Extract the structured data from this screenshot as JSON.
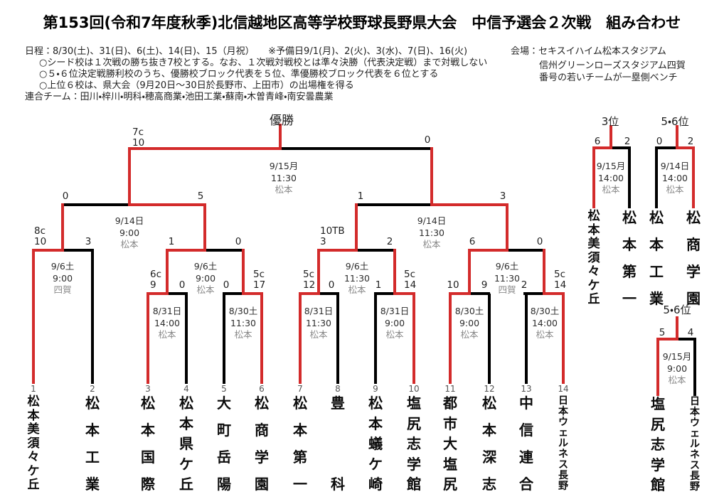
{
  "title": "第153回(令和7年度秋季)北信越地区高等学校野球長野県大会　中信予選会２次戦　組み合わせ",
  "header": {
    "schedule": "日程：8/30(土)、31(日)、6(土)、14(日)、15（月祝）　　※予備日9/1(月)、2(火)、3(水)、7(日)、16(火)",
    "notes": [
      "○シード校は１次戦の勝ち抜き7校とする。なお、１次戦対戦校とは準々決勝（代表決定戦）まで対戦しない",
      "○５・６位決定戦勝利校のうち、優勝校ブロック代表を５位、準優勝校ブロック代表を６位とする",
      "○上位６校は、県大会（9月20日～30日於長野市、上田市）の出場権を得る"
    ],
    "coalition": "連合チーム：田川・梓川・明科・穂高商業・池田工業・蘇南・木曽青峰・南安曇農業",
    "venue": [
      "会場：セキスイハイム松本スタジアム",
      "信州グリーンローズスタジアム四賀",
      "番号の若いチームが一塁側ベンチ"
    ]
  },
  "champion": {
    "label": "優勝"
  },
  "teams": [
    {
      "no": "1",
      "name": "松本美須々ケ丘"
    },
    {
      "no": "2",
      "name": "松本工業"
    },
    {
      "no": "3",
      "name": "松本国際"
    },
    {
      "no": "4",
      "name": "松本県ケ丘"
    },
    {
      "no": "5",
      "name": "大町岳陽"
    },
    {
      "no": "6",
      "name": "松商学園"
    },
    {
      "no": "7",
      "name": "松本第一"
    },
    {
      "no": "8",
      "name": "豊科"
    },
    {
      "no": "9",
      "name": "松本蟻ケ崎"
    },
    {
      "no": "10",
      "name": "塩尻志学館"
    },
    {
      "no": "11",
      "name": "都市大塩尻"
    },
    {
      "no": "12",
      "name": "松本深志"
    },
    {
      "no": "13",
      "name": "中信連合"
    },
    {
      "no": "14",
      "name": "日本ウェルネス長野"
    }
  ],
  "matches": {
    "m1": {
      "date": "8/31日",
      "time": "14:00",
      "venue": "松本",
      "left": {
        "mark": "6c",
        "score": "9"
      },
      "right": {
        "score": "0"
      }
    },
    "m2": {
      "date": "8/30土",
      "time": "11:30",
      "venue": "松本",
      "left": {
        "score": "0"
      },
      "right": {
        "mark": "5c",
        "score": "17"
      }
    },
    "m3": {
      "date": "8/31日",
      "time": "11:30",
      "venue": "松本",
      "left": {
        "mark": "5c",
        "score": "12"
      },
      "right": {
        "score": "0"
      }
    },
    "m4": {
      "date": "8/31日",
      "time": "9:00",
      "venue": "松本",
      "left": {
        "score": "1"
      },
      "right": {
        "mark": "5c",
        "score": "14"
      }
    },
    "m5": {
      "date": "8/30土",
      "time": "9:00",
      "venue": "松本",
      "left": {
        "score": "10"
      },
      "right": {
        "score": "9"
      }
    },
    "m6": {
      "date": "8/30土",
      "time": "14:00",
      "venue": "松本",
      "left": {
        "score": "2"
      },
      "right": {
        "mark": "5c",
        "score": "14"
      }
    },
    "qf1": {
      "date": "9/6土",
      "time": "9:00",
      "venue": "四賀",
      "left": {
        "mark": "8c",
        "score": "10"
      },
      "right": {
        "score": "3"
      }
    },
    "qf2": {
      "date": "9/6土",
      "time": "9:00",
      "venue": "松本",
      "left": {
        "score": "1"
      },
      "right": {
        "score": "0"
      }
    },
    "qf3": {
      "date": "9/6土",
      "time": "11:30",
      "venue": "松本",
      "left": {
        "mark": "10TB",
        "score": "3"
      },
      "right": {
        "score": "2"
      }
    },
    "qf4": {
      "date": "9/6土",
      "time": "11:30",
      "venue": "四賀",
      "left": {
        "score": "6"
      },
      "right": {
        "score": "0"
      }
    },
    "sf1": {
      "date": "9/14日",
      "time": "9:00",
      "venue": "松本",
      "left": {
        "score": "0"
      },
      "right": {
        "score": "5"
      }
    },
    "sf2": {
      "date": "9/14日",
      "time": "11:30",
      "venue": "松本",
      "left": {
        "score": "1"
      },
      "right": {
        "score": "3"
      }
    },
    "final": {
      "date": "9/15月",
      "time": "11:30",
      "venue": "松本",
      "left": {
        "mark": "7c",
        "score": "10"
      },
      "right": {
        "score": "0"
      }
    }
  },
  "placement": {
    "third": {
      "label": "3位",
      "date": "9/15月",
      "time": "14:00",
      "venue": "松本",
      "left": {
        "score": "6",
        "name": "松本美須々ケ丘"
      },
      "right": {
        "score": "2",
        "name": "松本第一"
      }
    },
    "fifth_upper": {
      "label": "5・6位",
      "date": "9/14日",
      "time": "14:00",
      "venue": "松本",
      "left": {
        "score": "0",
        "name": "松本工業"
      },
      "right": {
        "score": "2",
        "name": "松商学園"
      }
    },
    "fifth_lower": {
      "label": "5・6位",
      "date": "9/15月",
      "time": "9:00",
      "venue": "松本",
      "left": {
        "score": "5",
        "name": "塩尻志学館"
      },
      "right": {
        "score": "4",
        "name": "日本ウェルネス長野"
      }
    }
  },
  "colors": {
    "winner_path": "#d32b2b",
    "line": "#000000"
  }
}
